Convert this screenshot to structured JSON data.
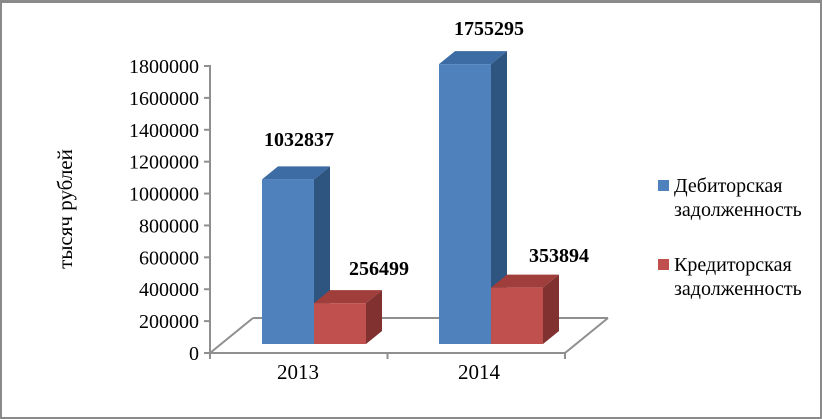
{
  "frame": {
    "background": "#ffffff",
    "border_color": "#8a8a8a"
  },
  "chart_data": {
    "type": "bar",
    "projection": "3d",
    "title": "",
    "categories": [
      "2013",
      "2014"
    ],
    "series": [
      {
        "name": "Дебиторская задолженность",
        "color": "#4F81BD",
        "color_top": "#3D6CA5",
        "color_side": "#2E5480",
        "values": [
          1032837,
          1755295
        ]
      },
      {
        "name": "Кредиторская задолженность",
        "color": "#C0504D",
        "color_top": "#A03E3C",
        "color_side": "#813130",
        "values": [
          256499,
          353894
        ]
      }
    ],
    "data_labels": [
      "1032837",
      "1755295",
      "256499",
      "353894"
    ],
    "xlabel": "",
    "ylabel": "тысяч рублей",
    "ylim": [
      0,
      1800000
    ],
    "ytick_step": 200000,
    "y_tick_labels": [
      "0",
      "200000",
      "400000",
      "600000",
      "800000",
      "1000000",
      "1200000",
      "1400000",
      "1600000",
      "1800000"
    ],
    "grid": false,
    "legend_position": "right",
    "axis_color": "#8f8f8f"
  }
}
